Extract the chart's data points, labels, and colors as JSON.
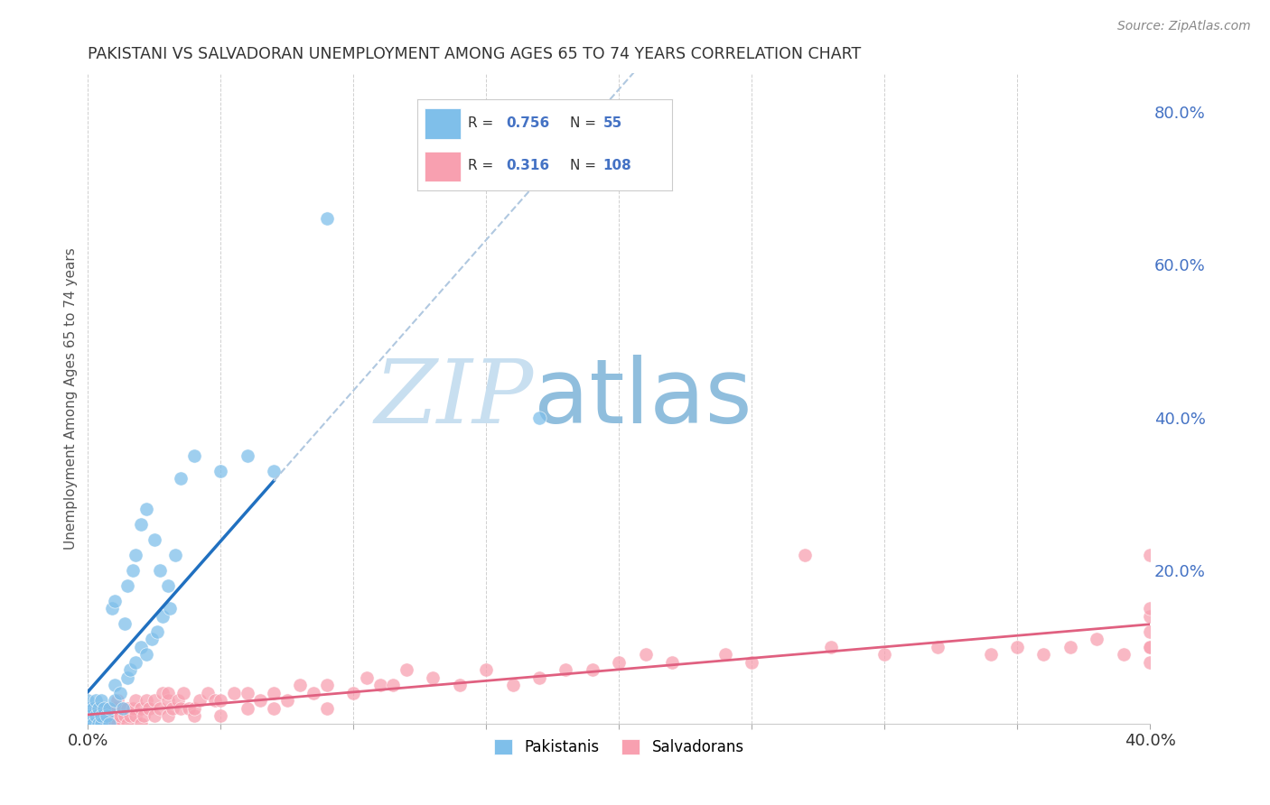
{
  "title": "PAKISTANI VS SALVADORAN UNEMPLOYMENT AMONG AGES 65 TO 74 YEARS CORRELATION CHART",
  "source": "Source: ZipAtlas.com",
  "ylabel": "Unemployment Among Ages 65 to 74 years",
  "xlim": [
    0.0,
    0.4
  ],
  "ylim": [
    0.0,
    0.85
  ],
  "y_ticks_right": [
    0.0,
    0.2,
    0.4,
    0.6,
    0.8
  ],
  "y_tick_labels_right": [
    "",
    "20.0%",
    "40.0%",
    "60.0%",
    "80.0%"
  ],
  "pakistani_color": "#7fbfea",
  "pakistani_line_color": "#2070c0",
  "salvadoran_color": "#f8a0b0",
  "salvadoran_line_color": "#e06080",
  "dashed_line_color": "#b0c8e0",
  "pakistani_R": 0.756,
  "pakistani_N": 55,
  "salvadoran_R": 0.316,
  "salvadoran_N": 108,
  "pakistani_scatter_x": [
    0.0,
    0.0,
    0.0,
    0.0,
    0.0,
    0.0,
    0.0,
    0.0,
    0.001,
    0.001,
    0.002,
    0.002,
    0.003,
    0.003,
    0.004,
    0.004,
    0.005,
    0.005,
    0.005,
    0.006,
    0.007,
    0.008,
    0.008,
    0.009,
    0.01,
    0.01,
    0.01,
    0.012,
    0.013,
    0.014,
    0.015,
    0.015,
    0.016,
    0.017,
    0.018,
    0.018,
    0.02,
    0.02,
    0.022,
    0.022,
    0.024,
    0.025,
    0.026,
    0.027,
    0.028,
    0.03,
    0.031,
    0.033,
    0.035,
    0.04,
    0.05,
    0.06,
    0.07,
    0.09,
    0.17
  ],
  "pakistani_scatter_y": [
    0.0,
    0.0,
    0.0,
    0.0,
    0.01,
    0.01,
    0.02,
    0.03,
    0.0,
    0.01,
    0.0,
    0.02,
    0.01,
    0.03,
    0.0,
    0.02,
    0.0,
    0.01,
    0.03,
    0.02,
    0.01,
    0.0,
    0.02,
    0.15,
    0.03,
    0.05,
    0.16,
    0.04,
    0.02,
    0.13,
    0.06,
    0.18,
    0.07,
    0.2,
    0.08,
    0.22,
    0.1,
    0.26,
    0.09,
    0.28,
    0.11,
    0.24,
    0.12,
    0.2,
    0.14,
    0.18,
    0.15,
    0.22,
    0.32,
    0.35,
    0.33,
    0.35,
    0.33,
    0.66,
    0.4
  ],
  "salvadoran_scatter_x": [
    0.0,
    0.0,
    0.0,
    0.0,
    0.0,
    0.0,
    0.001,
    0.001,
    0.002,
    0.002,
    0.003,
    0.003,
    0.003,
    0.004,
    0.004,
    0.005,
    0.005,
    0.005,
    0.006,
    0.006,
    0.007,
    0.007,
    0.008,
    0.008,
    0.009,
    0.01,
    0.01,
    0.01,
    0.011,
    0.011,
    0.012,
    0.013,
    0.014,
    0.015,
    0.015,
    0.016,
    0.017,
    0.018,
    0.018,
    0.02,
    0.02,
    0.021,
    0.022,
    0.023,
    0.025,
    0.025,
    0.027,
    0.028,
    0.03,
    0.03,
    0.03,
    0.032,
    0.034,
    0.035,
    0.036,
    0.038,
    0.04,
    0.04,
    0.042,
    0.045,
    0.048,
    0.05,
    0.05,
    0.055,
    0.06,
    0.06,
    0.065,
    0.07,
    0.07,
    0.075,
    0.08,
    0.085,
    0.09,
    0.09,
    0.1,
    0.105,
    0.11,
    0.115,
    0.12,
    0.13,
    0.14,
    0.15,
    0.16,
    0.17,
    0.18,
    0.19,
    0.2,
    0.21,
    0.22,
    0.24,
    0.25,
    0.27,
    0.28,
    0.3,
    0.32,
    0.34,
    0.35,
    0.36,
    0.37,
    0.38,
    0.39,
    0.4,
    0.4,
    0.4,
    0.4,
    0.4,
    0.4,
    0.4
  ],
  "salvadoran_scatter_y": [
    0.0,
    0.0,
    0.0,
    0.0,
    0.01,
    0.02,
    0.0,
    0.01,
    0.0,
    0.02,
    0.0,
    0.01,
    0.02,
    0.0,
    0.01,
    0.0,
    0.01,
    0.02,
    0.0,
    0.01,
    0.0,
    0.01,
    0.0,
    0.02,
    0.01,
    0.0,
    0.01,
    0.02,
    0.0,
    0.03,
    0.01,
    0.02,
    0.01,
    0.0,
    0.02,
    0.01,
    0.02,
    0.01,
    0.03,
    0.0,
    0.02,
    0.01,
    0.03,
    0.02,
    0.01,
    0.03,
    0.02,
    0.04,
    0.01,
    0.03,
    0.04,
    0.02,
    0.03,
    0.02,
    0.04,
    0.02,
    0.01,
    0.02,
    0.03,
    0.04,
    0.03,
    0.01,
    0.03,
    0.04,
    0.02,
    0.04,
    0.03,
    0.02,
    0.04,
    0.03,
    0.05,
    0.04,
    0.02,
    0.05,
    0.04,
    0.06,
    0.05,
    0.05,
    0.07,
    0.06,
    0.05,
    0.07,
    0.05,
    0.06,
    0.07,
    0.07,
    0.08,
    0.09,
    0.08,
    0.09,
    0.08,
    0.22,
    0.1,
    0.09,
    0.1,
    0.09,
    0.1,
    0.09,
    0.1,
    0.11,
    0.09,
    0.14,
    0.1,
    0.12,
    0.08,
    0.22,
    0.1,
    0.15
  ],
  "background_color": "#ffffff",
  "grid_color": "#d0d0d0",
  "watermark_zip_color": "#c8dff0",
  "watermark_atlas_color": "#c8dff0"
}
